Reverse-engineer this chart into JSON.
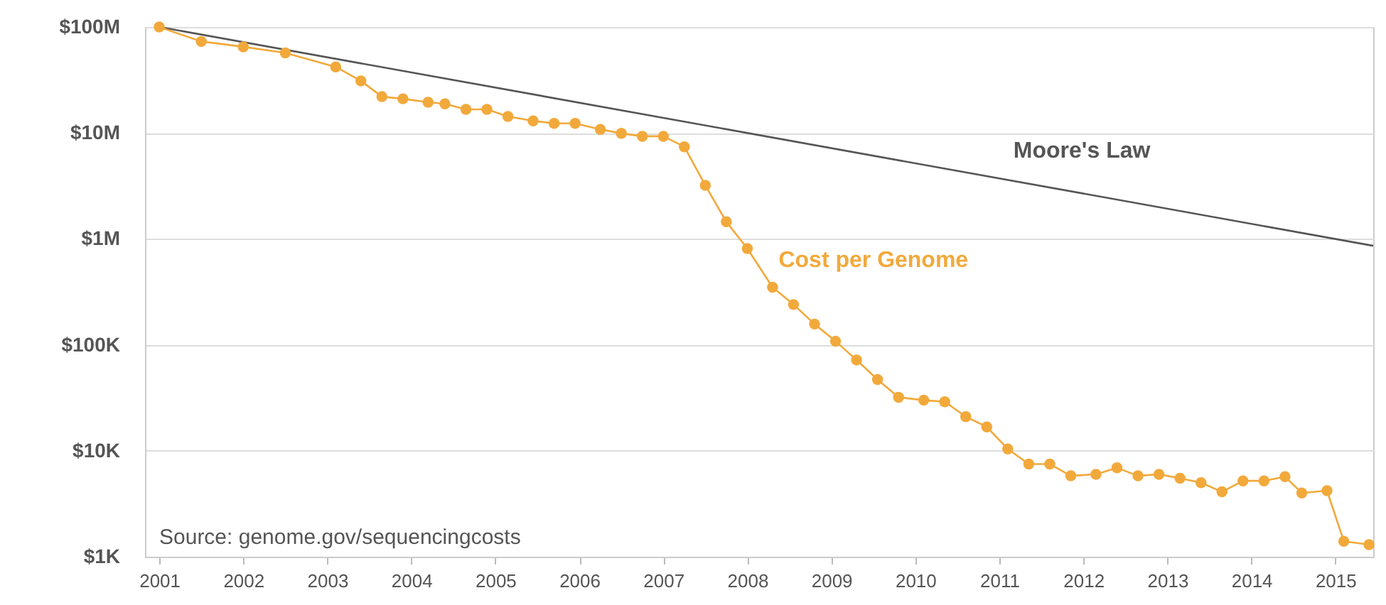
{
  "chart_data": {
    "type": "line",
    "log": "y",
    "grid": "y",
    "marker": "circle",
    "xlim": [
      2000.83,
      2015.45
    ],
    "xticks": [
      2001,
      2002,
      2003,
      2004,
      2005,
      2006,
      2007,
      2008,
      2009,
      2010,
      2011,
      2012,
      2013,
      2014,
      2015
    ],
    "ylim": [
      1000,
      100000000
    ],
    "yticks": [
      {
        "value": 1000,
        "label": "$1K"
      },
      {
        "value": 10000,
        "label": "$10K"
      },
      {
        "value": 100000,
        "label": "$100K"
      },
      {
        "value": 1000000,
        "label": "$1M"
      },
      {
        "value": 10000000,
        "label": "$10M"
      },
      {
        "value": 100000000,
        "label": "$100M"
      }
    ],
    "series": [
      {
        "name": "Moore's Law",
        "color": "#555555",
        "marker": "none",
        "x": [
          2001,
          2015.45
        ],
        "values": [
          100000000,
          860000
        ]
      },
      {
        "name": "Cost per Genome",
        "color": "#f2a93b",
        "x": [
          2001,
          2001.5,
          2002,
          2002.5,
          2003.1,
          2003.4,
          2003.65,
          2003.9,
          2004.2,
          2004.4,
          2004.65,
          2004.9,
          2005.15,
          2005.45,
          2005.7,
          2005.95,
          2006.25,
          2006.5,
          2006.75,
          2007,
          2007.25,
          2007.5,
          2007.75,
          2008,
          2008.3,
          2008.55,
          2008.8,
          2009.05,
          2009.3,
          2009.55,
          2009.8,
          2010.1,
          2010.35,
          2010.6,
          2010.85,
          2011.1,
          2011.35,
          2011.6,
          2011.85,
          2012.15,
          2012.4,
          2012.65,
          2012.9,
          2013.15,
          2013.4,
          2013.65,
          2013.9,
          2014.15,
          2014.4,
          2014.6,
          2014.9,
          2015.1,
          2015.4
        ],
        "values": [
          100000000,
          73000000,
          65000000,
          57000000,
          42000000,
          31000000,
          22000000,
          21000000,
          19500000,
          18800000,
          16700000,
          16700000,
          14300000,
          13000000,
          12300000,
          12300000,
          10800000,
          9900000,
          9300000,
          9300000,
          7400000,
          3200000,
          1450000,
          810000,
          350000,
          240000,
          157000,
          108000,
          72000,
          47000,
          32000,
          30000,
          29000,
          21000,
          16800,
          10400,
          7500,
          7500,
          5800,
          6000,
          6900,
          5800,
          6000,
          5500,
          5000,
          4100,
          5200,
          5200,
          5700,
          4000,
          4200,
          1400,
          1300
        ]
      }
    ],
    "annotations": [
      "Source: genome.gov/sequencingcosts"
    ]
  }
}
